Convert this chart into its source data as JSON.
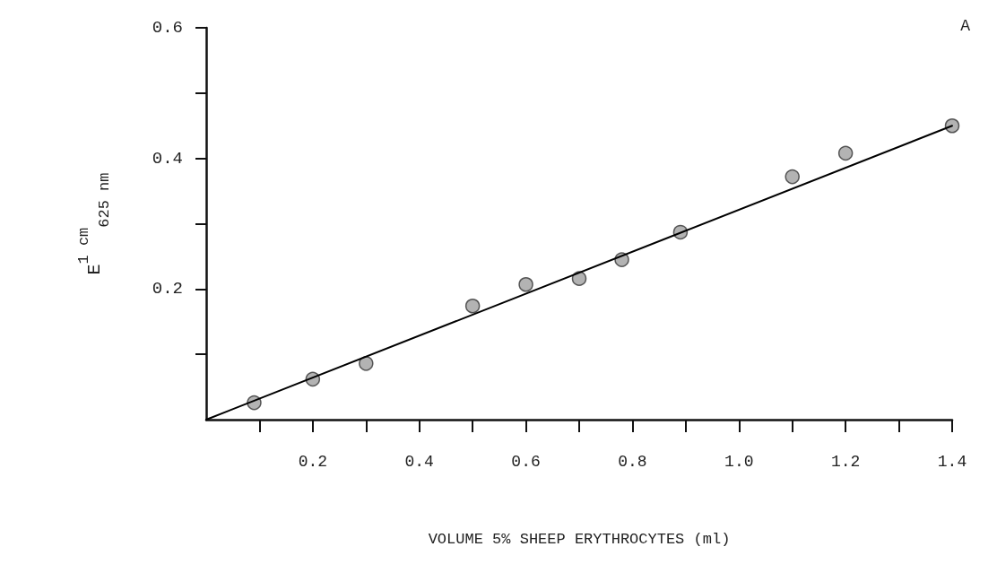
{
  "chart_data": {
    "type": "scatter",
    "xlabel": "VOLUME 5% SHEEP ERYTHROCYTES (ml)",
    "ylabel": "E$^{1 cm}$$_{625 nm}$",
    "annotations": [
      "A"
    ],
    "xlim": [
      0,
      1.4
    ],
    "ylim": [
      0,
      0.6
    ],
    "xticks": [
      {
        "value": 0.1,
        "label": null
      },
      0.2,
      {
        "value": 0.3,
        "label": null
      },
      0.4,
      {
        "value": 0.5,
        "label": null
      },
      0.6,
      {
        "value": 0.7,
        "label": null
      },
      0.8,
      {
        "value": 0.9,
        "label": null
      },
      {
        "value": 1.0,
        "label": "1.0"
      },
      {
        "value": 1.1,
        "label": null
      },
      1.2,
      {
        "value": 1.3,
        "label": null
      },
      1.4
    ],
    "yticks": [
      {
        "value": 0.1,
        "label": null
      },
      0.2,
      {
        "value": 0.3,
        "label": null
      },
      0.4,
      {
        "value": 0.5,
        "label": null
      },
      0.6
    ],
    "grid": false,
    "marker": "circle",
    "series": [
      {
        "color": "#a0a0a0",
        "x": [
          0.09,
          0.2,
          0.3,
          0.5,
          0.6,
          0.7,
          0.78,
          0.89,
          1.1,
          1.2,
          1.4
        ],
        "values": [
          0.026,
          0.062,
          0.086,
          0.174,
          0.207,
          0.216,
          0.245,
          0.287,
          0.372,
          0.408,
          0.45
        ]
      },
      {
        "type": "line",
        "color": "#000000",
        "marker": "none",
        "line_style": "solid",
        "x": [
          0,
          1.4
        ],
        "values": [
          0,
          0.45
        ]
      }
    ]
  }
}
